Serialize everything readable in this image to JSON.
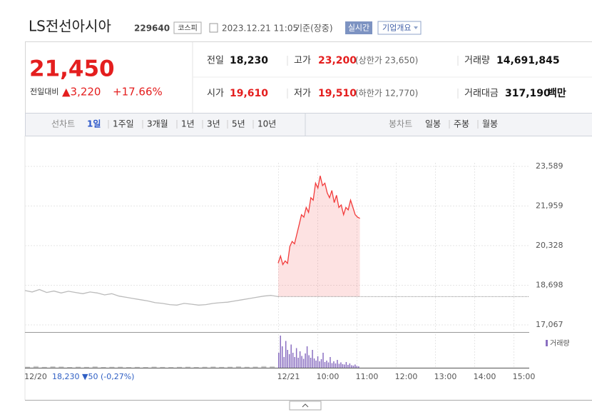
{
  "header": {
    "name": "LS전선아시아",
    "code": "229640",
    "market": "코스피",
    "datetime": "2023.12.21 11:05",
    "basis": "기준(장중)",
    "realtime": "실시간",
    "company": "기업개요"
  },
  "quote": {
    "price": "21,450",
    "change_label": "전일대비",
    "change": "▲3,220",
    "change_pct": "+17.66%",
    "stats": [
      {
        "label": "전일",
        "value": "18,230"
      },
      {
        "label": "고가",
        "value": "23,200",
        "extra": "(상한가 23,650)"
      },
      {
        "label": "거래량",
        "value": "14,691,845"
      },
      {
        "label": "시가",
        "value": "19,610"
      },
      {
        "label": "저가",
        "value": "19,510",
        "extra": "(하한가 12,770)"
      },
      {
        "label": "거래대금",
        "value": "317,190",
        "unit": "백만"
      }
    ]
  },
  "tabs": {
    "line": {
      "label": "선차트",
      "items": [
        "1일",
        "1주일",
        "3개월",
        "1년",
        "3년",
        "5년",
        "10년"
      ]
    },
    "candle": {
      "label": "봉차트",
      "items": [
        "일봉",
        "주봉",
        "월봉"
      ]
    }
  },
  "chart_data": {
    "type": "line",
    "series": [
      {
        "color": "#bbbbbb",
        "values": [
          18480,
          18420,
          18520,
          18400,
          18460,
          18380,
          18450,
          18400,
          18350,
          18420,
          18380,
          18300,
          18350,
          18250,
          18200,
          18150,
          18100,
          18050,
          17980,
          17950,
          17900,
          17880,
          17950,
          17920,
          17880,
          17900,
          17950,
          17980,
          18000,
          18050,
          18100,
          18150,
          18200,
          18250,
          18280,
          18230
        ]
      },
      {
        "color": "#f23b3b",
        "values": [
          19610,
          19900,
          19550,
          19700,
          19600,
          20300,
          20500,
          20400,
          20800,
          21200,
          21600,
          21500,
          21900,
          21700,
          22300,
          22200,
          22900,
          22700,
          23200,
          22800,
          22900,
          22500,
          22300,
          22600,
          22100,
          22400,
          21900,
          22000,
          21600,
          21900,
          21800,
          22200,
          21900,
          21600,
          21500,
          21450
        ]
      }
    ],
    "prev_close": 18230,
    "ylim": [
      17067,
      23589
    ],
    "yticks": [
      {
        "value": 17067,
        "label": "17,067"
      },
      {
        "value": 18698,
        "label": "18,698"
      },
      {
        "value": 20328,
        "label": "20,328"
      },
      {
        "value": 21959,
        "label": "21,959"
      },
      {
        "value": 23589,
        "label": "23,589"
      }
    ],
    "xticks": [
      "12/21",
      "10:00",
      "11:00",
      "12:00",
      "13:00",
      "14:00",
      "15:00"
    ],
    "prev_date": "12/20",
    "prev_info": "18,230 ▼50 (-0,27%)",
    "volume_label": "거래량",
    "prev_volume": [
      30000,
      45000,
      25000,
      40000,
      35000,
      20000,
      30000,
      25000,
      38000,
      22000,
      28000,
      30000,
      18000,
      25000,
      20000,
      32000,
      24000,
      18000,
      26000,
      30000,
      22000,
      28000,
      35000,
      25000,
      30000,
      40000,
      28000,
      33000,
      45000,
      38000
    ],
    "volume": [
      420000,
      900000,
      600000,
      300000,
      750000,
      500000,
      380000,
      650000,
      420000,
      300000,
      550000,
      280000,
      460000,
      330000,
      250000,
      400000,
      600000,
      350000,
      280000,
      500000,
      260000,
      200000,
      320000,
      180000,
      240000,
      420000,
      160000,
      200000,
      150000,
      300000,
      130000,
      180000,
      120000,
      220000,
      110000,
      150000,
      100000,
      90000,
      160000,
      80000,
      120000,
      70000,
      60000,
      90000,
      50000,
      40000
    ],
    "grid": true
  }
}
